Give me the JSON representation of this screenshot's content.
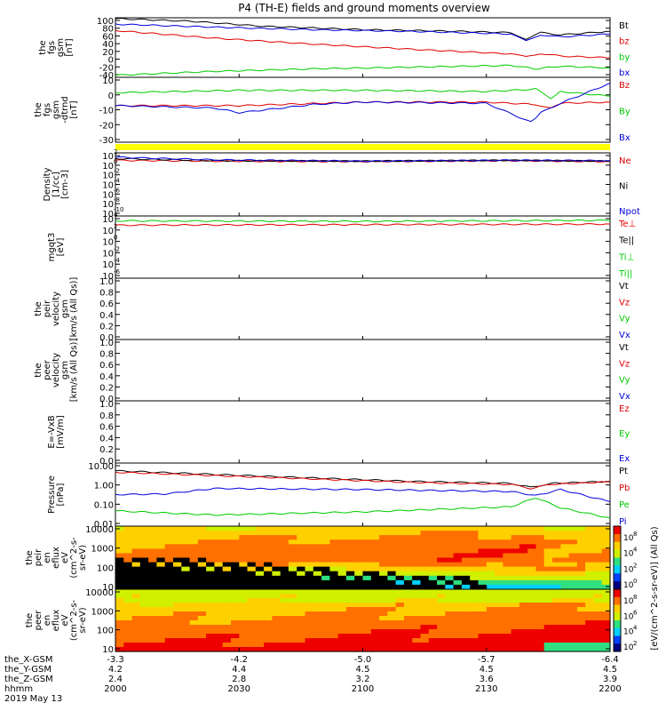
{
  "title": "P4 (TH-E) fields and ground moments overview",
  "date_label": "2019 May 13",
  "colors": {
    "black": "#000000",
    "red": "#e00000",
    "green": "#00cc00",
    "blue": "#0000dd",
    "yellow": "#ffff00"
  },
  "chart_data": [
    {
      "type": "line",
      "panel": "fgs-gsm-nt",
      "ylabel": [
        "the",
        "fgs",
        "gsm",
        "[nT]"
      ],
      "y_ticks": [
        "100",
        "80",
        "60",
        "40",
        "20",
        "0",
        "-20",
        "-40"
      ],
      "ylim": [
        -40,
        100
      ],
      "legend": [
        {
          "name": "Bt",
          "color": "#000000"
        },
        {
          "name": "bz",
          "color": "#e00000"
        },
        {
          "name": "by",
          "color": "#00cc00"
        },
        {
          "name": "bx",
          "color": "#0000dd"
        }
      ],
      "series": [
        {
          "name": "Bt",
          "x": [
            0,
            0.15,
            0.3,
            0.5,
            0.7,
            0.8,
            0.83,
            0.86,
            0.9,
            1
          ],
          "y": [
            98,
            92,
            80,
            72,
            68,
            65,
            50,
            65,
            60,
            68
          ]
        },
        {
          "name": "bz",
          "x": [
            0,
            0.2,
            0.4,
            0.6,
            0.8,
            0.83,
            0.86,
            0.9,
            1
          ],
          "y": [
            70,
            52,
            38,
            26,
            15,
            8,
            16,
            10,
            6
          ]
        },
        {
          "name": "by",
          "x": [
            0,
            0.2,
            0.4,
            0.6,
            0.8,
            0.85,
            0.9,
            1
          ],
          "y": [
            -35,
            -26,
            -20,
            -16,
            -12,
            -20,
            -14,
            -18
          ]
        },
        {
          "name": "bx",
          "x": [
            0,
            0.2,
            0.4,
            0.6,
            0.8,
            0.83,
            0.86,
            0.9,
            1
          ],
          "y": [
            85,
            78,
            72,
            68,
            62,
            45,
            60,
            55,
            62
          ]
        }
      ]
    },
    {
      "type": "line",
      "panel": "fgs-gsm-detrended",
      "ylabel": [
        "the",
        "fgs",
        "gsm",
        "-dtrnd",
        "[nT]"
      ],
      "y_ticks": [
        "10",
        "0",
        "-10",
        "-20",
        "-30"
      ],
      "ylim": [
        -35,
        20
      ],
      "legend": [
        {
          "name": "Bz",
          "color": "#e00000"
        },
        {
          "name": "By",
          "color": "#00cc00"
        },
        {
          "name": "Bx",
          "color": "#0000dd"
        }
      ],
      "series": [
        {
          "name": "Bz",
          "x": [
            0,
            0.25,
            0.5,
            0.75,
            0.85,
            0.88,
            0.9,
            1
          ],
          "y": [
            -4,
            -4,
            -1,
            -1,
            -3,
            -6,
            -2,
            -1
          ]
        },
        {
          "name": "By",
          "x": [
            0,
            0.25,
            0.5,
            0.75,
            0.85,
            0.88,
            0.9,
            1
          ],
          "y": [
            7,
            9,
            9,
            8,
            10,
            2,
            8,
            4
          ]
        },
        {
          "name": "Bx",
          "x": [
            0,
            0.2,
            0.25,
            0.4,
            0.5,
            0.75,
            0.84,
            0.86,
            0.9,
            1
          ],
          "y": [
            -4,
            -6,
            -10,
            -3,
            -1,
            -2,
            -18,
            -10,
            -2,
            15
          ]
        }
      ]
    },
    {
      "type": "line",
      "panel": "density",
      "ylabel": [
        "Density",
        "[1/cc]",
        "[cm-3]"
      ],
      "y_ticks": [
        "10",
        "10",
        "10",
        "10",
        "10",
        "10",
        "10"
      ],
      "y_tick_exponents": [
        "2",
        "0",
        "-2",
        "-4",
        "-6",
        "-8",
        "-10"
      ],
      "log": true,
      "ylim": [
        -12,
        2.5
      ],
      "legend": [
        {
          "name": "Ne",
          "color": "#e00000"
        },
        {
          "name": "Ni",
          "color": "#000000"
        },
        {
          "name": "Npot",
          "color": "#0000dd"
        }
      ],
      "series": [
        {
          "name": "Ne",
          "x": [
            0,
            0.2,
            0.5,
            0.8,
            1
          ],
          "y": [
            0.8,
            0.6,
            0.5,
            0.7,
            0.5
          ]
        },
        {
          "name": "Ni",
          "x": [
            0,
            0.2,
            0.5,
            0.8,
            1
          ],
          "y": [
            1.2,
            0.7,
            0.6,
            0.8,
            0.6
          ]
        },
        {
          "name": "Npot",
          "x": [
            0,
            0.2,
            0.5,
            0.8,
            1
          ],
          "y": [
            1.5,
            0.9,
            0.6,
            0.8,
            0.7
          ]
        }
      ]
    },
    {
      "type": "line",
      "panel": "temperature",
      "ylabel": [
        "mgqt3",
        "[eV]"
      ],
      "y_ticks": [
        "10",
        "10",
        "10",
        "10",
        "10",
        "10"
      ],
      "y_tick_exponents": [
        "4",
        "2",
        "0",
        "-2",
        "-4",
        "-6"
      ],
      "log": true,
      "ylim": [
        -7,
        4.5
      ],
      "legend": [
        {
          "name": "Te⊥",
          "color": "#e00000"
        },
        {
          "name": "Te||",
          "color": "#000000"
        },
        {
          "name": "Ti⊥",
          "color": "#00cc00"
        },
        {
          "name": "Ti||",
          "color": "#00cc00"
        }
      ],
      "series": [
        {
          "name": "Te⊥",
          "x": [
            0,
            0.5,
            1
          ],
          "y": [
            2.8,
            2.9,
            3.0
          ]
        },
        {
          "name": "Ti⊥",
          "x": [
            0,
            0.5,
            1
          ],
          "y": [
            3.6,
            3.5,
            3.7
          ]
        }
      ]
    },
    {
      "type": "line",
      "panel": "peir-velocity",
      "ylabel": [
        "the",
        "peir",
        "velocity",
        "gsm",
        "[km/s (All Qs)]"
      ],
      "y_ticks": [
        "1.0",
        "0.8",
        "0.6",
        "0.4",
        "0.2",
        "0.0"
      ],
      "ylim": [
        0,
        1
      ],
      "legend": [
        {
          "name": "Vt",
          "color": "#000000"
        },
        {
          "name": "Vz",
          "color": "#e00000"
        },
        {
          "name": "Vy",
          "color": "#00cc00"
        },
        {
          "name": "Vx",
          "color": "#0000dd"
        }
      ],
      "series": []
    },
    {
      "type": "line",
      "panel": "peer-velocity",
      "ylabel": [
        "the",
        "peer",
        "velocity",
        "gsm",
        "[km/s (All Qs)]"
      ],
      "y_ticks": [
        "1.0",
        "0.8",
        "0.6",
        "0.4",
        "0.2",
        "0.0"
      ],
      "ylim": [
        0,
        1
      ],
      "legend": [
        {
          "name": "Vt",
          "color": "#000000"
        },
        {
          "name": "Vz",
          "color": "#e00000"
        },
        {
          "name": "Vy",
          "color": "#00cc00"
        },
        {
          "name": "Vx",
          "color": "#0000dd"
        }
      ],
      "series": []
    },
    {
      "type": "line",
      "panel": "efield",
      "ylabel": [
        "E=-VxB",
        "[mV/m]"
      ],
      "y_ticks": [
        "1.0",
        "0.8",
        "0.6",
        "0.4",
        "0.2",
        "0.0"
      ],
      "ylim": [
        0,
        1
      ],
      "legend": [
        {
          "name": "Ez",
          "color": "#e00000"
        },
        {
          "name": "Ey",
          "color": "#00cc00"
        },
        {
          "name": "Ex",
          "color": "#0000dd"
        }
      ],
      "series": []
    },
    {
      "type": "line",
      "panel": "pressure",
      "ylabel": [
        "Pressure",
        "[nPa]"
      ],
      "y_ticks": [
        "10.00",
        "1.00",
        "0.10",
        "0.01"
      ],
      "log": true,
      "ylim": [
        -2,
        1.1
      ],
      "legend": [
        {
          "name": "Pt",
          "color": "#000000"
        },
        {
          "name": "Pb",
          "color": "#e00000"
        },
        {
          "name": "Pe",
          "color": "#00cc00"
        },
        {
          "name": "Pi",
          "color": "#0000dd"
        }
      ],
      "series": [
        {
          "name": "Pt",
          "x": [
            0,
            0.3,
            0.6,
            0.8,
            0.84,
            0.88,
            1
          ],
          "y": [
            0.72,
            0.45,
            0.2,
            0.1,
            -0.1,
            0.1,
            0.2
          ]
        },
        {
          "name": "Pb",
          "x": [
            0,
            0.3,
            0.6,
            0.8,
            0.84,
            0.88,
            1
          ],
          "y": [
            0.65,
            0.4,
            0.15,
            0.05,
            -0.15,
            0.05,
            0.18
          ]
        },
        {
          "name": "Pe",
          "x": [
            0,
            0.2,
            0.5,
            0.8,
            0.85,
            0.9,
            1
          ],
          "y": [
            -1.25,
            -1.45,
            -1.3,
            -1.05,
            -0.6,
            -1.1,
            -1.6
          ]
        },
        {
          "name": "Pi",
          "x": [
            0,
            0.1,
            0.2,
            0.5,
            0.8,
            0.85,
            0.9,
            1
          ],
          "y": [
            -0.45,
            -0.42,
            -0.15,
            -0.2,
            -0.3,
            -0.5,
            -0.2,
            -0.8
          ]
        }
      ]
    },
    {
      "type": "heatmap",
      "panel": "peir-eflux",
      "ylabel": [
        "the",
        "peir",
        "en",
        "eflux",
        "eV",
        "(cm^2-s-",
        "sr-eV)"
      ],
      "y_ticks": [
        "10000",
        "1000",
        "100",
        "10"
      ],
      "log": true
    },
    {
      "type": "heatmap",
      "panel": "peer-eflux",
      "ylabel": [
        "the",
        "peer",
        "en",
        "eflux",
        "eV",
        "(cm^2-s-",
        "sr-eV)"
      ],
      "y_ticks": [
        "10000",
        "1000",
        "100",
        "10"
      ],
      "log": true
    }
  ],
  "colorbar": {
    "label": "[eV/(cm^2-s-sr-eV)] (All Qs)",
    "ticks": [
      "10",
      "10",
      "10",
      "10"
    ],
    "exponents": [
      "8",
      "4",
      "2",
      "0"
    ],
    "ticks2": [
      "10",
      "10",
      "10",
      "10"
    ],
    "exponents2": [
      "8",
      "6",
      "4",
      "2"
    ]
  },
  "x_axis": {
    "row_labels": [
      "the_X-GSM",
      "the_Y-GSM",
      "the_Z-GSM",
      "hhmm"
    ],
    "ticks": [
      {
        "X": "-3.3",
        "Y": "4.2",
        "Z": "2.4",
        "hhmm": "2000"
      },
      {
        "X": "-4.2",
        "Y": "4.4",
        "Z": "2.8",
        "hhmm": "2030"
      },
      {
        "X": "-5.0",
        "Y": "4.5",
        "Z": "3.2",
        "hhmm": "2100"
      },
      {
        "X": "-5.7",
        "Y": "4.5",
        "Z": "3.6",
        "hhmm": "2130"
      },
      {
        "X": "-6.4",
        "Y": "4.5",
        "Z": "3.9",
        "hhmm": "2200"
      }
    ]
  }
}
